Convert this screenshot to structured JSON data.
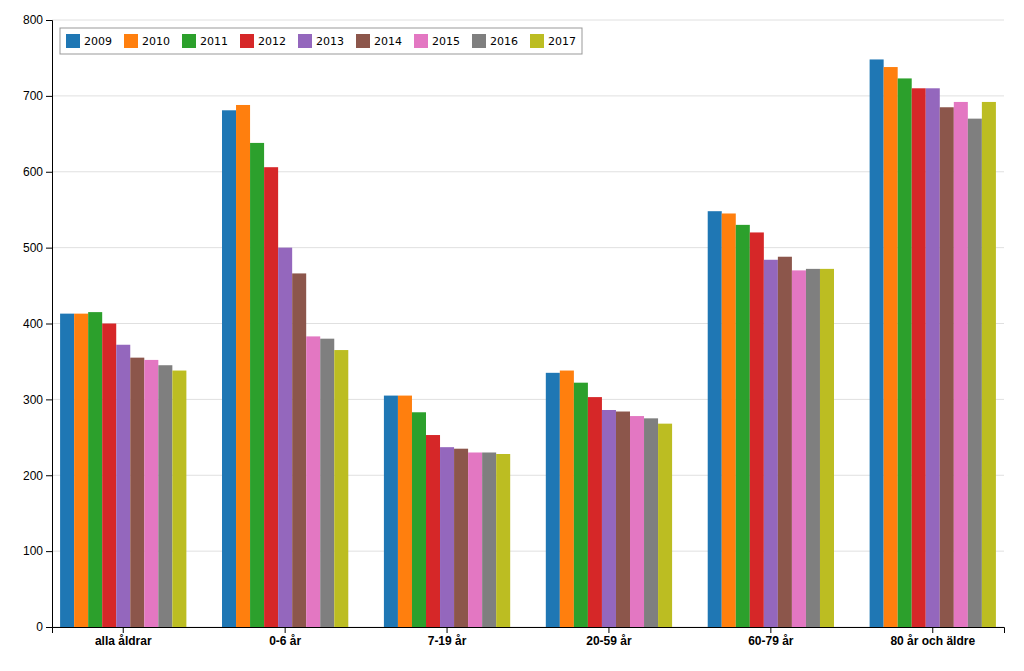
{
  "chart_data": {
    "type": "bar",
    "categories": [
      "alla åldrar",
      "0-6 år",
      "7-19 år",
      "20-59 år",
      "60-79 år",
      "80 år och äldre"
    ],
    "series": [
      {
        "name": "2009",
        "values": [
          413,
          681,
          305,
          335,
          548,
          748
        ]
      },
      {
        "name": "2010",
        "values": [
          413,
          688,
          305,
          338,
          545,
          738
        ]
      },
      {
        "name": "2011",
        "values": [
          415,
          638,
          283,
          322,
          530,
          723
        ]
      },
      {
        "name": "2012",
        "values": [
          400,
          606,
          253,
          303,
          520,
          710
        ]
      },
      {
        "name": "2013",
        "values": [
          372,
          500,
          237,
          286,
          484,
          710
        ]
      },
      {
        "name": "2014",
        "values": [
          355,
          466,
          235,
          284,
          488,
          685
        ]
      },
      {
        "name": "2015",
        "values": [
          352,
          383,
          230,
          278,
          470,
          692
        ]
      },
      {
        "name": "2016",
        "values": [
          345,
          380,
          230,
          275,
          472,
          670
        ]
      },
      {
        "name": "2017",
        "values": [
          338,
          365,
          228,
          268,
          472,
          692
        ]
      }
    ],
    "ylim": [
      0,
      800
    ],
    "yticks": [
      0,
      100,
      200,
      300,
      400,
      500,
      600,
      700,
      800
    ],
    "grid": true,
    "legend": "upper left"
  }
}
